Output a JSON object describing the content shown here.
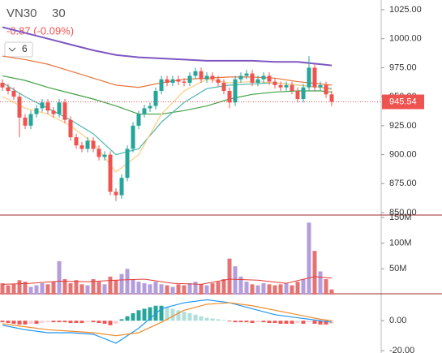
{
  "chart_data": [
    {
      "type": "candlestick",
      "title": "VN30",
      "interval": "30",
      "change": "-0.87 (-0.09%)",
      "indicator_count": 6,
      "up_color": "#26a69a",
      "down_color": "#ef5350",
      "last_price": 945.54,
      "ylim": [
        850,
        1025
      ],
      "yticks": [
        {
          "value": 1025,
          "label": "1025.00"
        },
        {
          "value": 1000,
          "label": "1000.00"
        },
        {
          "value": 975,
          "label": "975.00"
        },
        {
          "value": 950,
          "label": "950.00"
        },
        {
          "value": 925,
          "label": "925.00"
        },
        {
          "value": 900,
          "label": "900.00"
        },
        {
          "value": 875,
          "label": "875.00"
        },
        {
          "value": 850,
          "label": "850.00"
        }
      ],
      "open": [
        962,
        958,
        955,
        950,
        932,
        925,
        935,
        940,
        945,
        938,
        935,
        945,
        930,
        915,
        908,
        905,
        912,
        905,
        898,
        900,
        868,
        865,
        880,
        905,
        925,
        935,
        940,
        942,
        955,
        965,
        962,
        965,
        963,
        962,
        968,
        972,
        965,
        968,
        965,
        962,
        955,
        945,
        965,
        968,
        970,
        962,
        965,
        968,
        963,
        960,
        958,
        960,
        955,
        948,
        958,
        975,
        958,
        960,
        952
      ],
      "high": [
        965,
        961,
        958,
        953,
        935,
        938,
        943,
        948,
        948,
        941,
        948,
        948,
        933,
        918,
        911,
        915,
        915,
        908,
        903,
        903,
        871,
        883,
        908,
        928,
        938,
        943,
        945,
        958,
        968,
        968,
        968,
        968,
        966,
        971,
        975,
        975,
        971,
        971,
        968,
        965,
        958,
        968,
        971,
        973,
        973,
        968,
        971,
        971,
        966,
        963,
        963,
        963,
        958,
        961,
        985,
        978,
        963,
        963,
        955
      ],
      "low": [
        955,
        952,
        947,
        915,
        922,
        922,
        932,
        937,
        935,
        932,
        932,
        927,
        912,
        905,
        902,
        902,
        902,
        895,
        895,
        865,
        860,
        862,
        877,
        902,
        922,
        932,
        937,
        939,
        952,
        959,
        959,
        960,
        959,
        959,
        965,
        962,
        962,
        962,
        959,
        952,
        940,
        942,
        962,
        965,
        959,
        959,
        962,
        960,
        957,
        955,
        955,
        952,
        945,
        945,
        955,
        955,
        955,
        949,
        942
      ],
      "close": [
        958,
        955,
        950,
        932,
        925,
        935,
        940,
        945,
        938,
        935,
        945,
        930,
        915,
        908,
        905,
        912,
        905,
        898,
        900,
        868,
        865,
        880,
        905,
        925,
        935,
        940,
        942,
        955,
        965,
        962,
        965,
        963,
        962,
        968,
        972,
        965,
        968,
        965,
        962,
        955,
        945,
        965,
        968,
        970,
        962,
        965,
        968,
        963,
        960,
        958,
        960,
        955,
        948,
        958,
        975,
        958,
        960,
        952,
        945.54
      ],
      "series": [
        {
          "color": "#7e57c2",
          "x": [
            0,
            4,
            8,
            12,
            16,
            20,
            24,
            28,
            32,
            36,
            40,
            44,
            48,
            52,
            56,
            58
          ],
          "values": [
            1010,
            1005,
            1000,
            995,
            990,
            986,
            984,
            983,
            982,
            981,
            981,
            981,
            980,
            980,
            978,
            977
          ]
        },
        {
          "color": "#e8743b",
          "x": [
            0,
            4,
            8,
            12,
            16,
            20,
            24,
            28,
            32,
            36,
            40,
            44,
            48,
            52,
            56,
            58
          ],
          "values": [
            985,
            982,
            978,
            972,
            966,
            960,
            958,
            962,
            965,
            966,
            967,
            967,
            966,
            963,
            961,
            960
          ]
        },
        {
          "color": "#43a047",
          "x": [
            0,
            4,
            8,
            12,
            16,
            20,
            24,
            28,
            32,
            36,
            40,
            44,
            48,
            52,
            56,
            58
          ],
          "values": [
            968,
            964,
            958,
            953,
            948,
            942,
            935,
            935,
            938,
            942,
            948,
            952,
            954,
            955,
            955,
            954
          ]
        },
        {
          "color": "#4db6ac",
          "x": [
            0,
            4,
            8,
            12,
            16,
            20,
            24,
            28,
            32,
            36,
            40,
            44,
            48,
            52,
            56,
            58
          ],
          "values": [
            962,
            950,
            940,
            930,
            918,
            900,
            905,
            928,
            945,
            957,
            960,
            961,
            962,
            960,
            958,
            957
          ]
        },
        {
          "color": "#ffcc80",
          "x": [
            0,
            4,
            8,
            12,
            16,
            20,
            24,
            28,
            32,
            36,
            40,
            44,
            48,
            52,
            56,
            58
          ],
          "values": [
            950,
            940,
            935,
            925,
            910,
            885,
            900,
            935,
            955,
            965,
            962,
            963,
            962,
            960,
            958,
            956
          ]
        }
      ]
    },
    {
      "type": "volume",
      "up_color": "#b39ddb",
      "down_color": "#e57373",
      "ylim": [
        0,
        150
      ],
      "yticks": [
        {
          "value": 150,
          "label": "150M"
        },
        {
          "value": 100,
          "label": "100M"
        },
        {
          "value": 50,
          "label": "50M"
        }
      ],
      "values": [
        22,
        18,
        20,
        28,
        25,
        15,
        18,
        22,
        20,
        25,
        65,
        30,
        22,
        28,
        20,
        18,
        30,
        25,
        20,
        35,
        28,
        40,
        50,
        30,
        25,
        22,
        20,
        25,
        20,
        18,
        15,
        20,
        18,
        22,
        25,
        20,
        18,
        22,
        25,
        30,
        70,
        55,
        35,
        25,
        20,
        18,
        22,
        20,
        18,
        20,
        22,
        18,
        25,
        30,
        140,
        85,
        45,
        30,
        10
      ],
      "series": [
        {
          "color": "#e53935",
          "x": [
            0,
            5,
            10,
            15,
            20,
            25,
            30,
            35,
            40,
            45,
            50,
            55,
            58
          ],
          "values": [
            20,
            22,
            26,
            25,
            28,
            30,
            22,
            20,
            30,
            28,
            22,
            35,
            32
          ]
        }
      ]
    },
    {
      "type": "macd",
      "colors": [
        "#26a69a",
        "#b2dfdb",
        "#ef5350",
        "#ffcdd2"
      ],
      "ylim": [
        -21,
        18
      ],
      "yticks": [
        {
          "value": 0,
          "label": "0.00"
        },
        {
          "value": -20,
          "label": "-20.00"
        }
      ],
      "values": [
        -1,
        -1.5,
        -2,
        -2.5,
        -2.5,
        -2,
        -2,
        -1.5,
        -1,
        -1,
        -1,
        -1,
        -1.5,
        -1.5,
        -1.5,
        -1,
        -1,
        -1.5,
        -2,
        -3,
        -2,
        1,
        3,
        5,
        7,
        8,
        9,
        10,
        10,
        9,
        8,
        7,
        6,
        5,
        4,
        3,
        2,
        1.5,
        1,
        0.5,
        -0.5,
        -1,
        -1,
        -1,
        -1.5,
        -1,
        -1,
        -1.5,
        -1.5,
        -2,
        -2,
        -2,
        -1.5,
        -2,
        -1,
        -2,
        -2.5,
        -2.5,
        -2
      ],
      "series": [
        {
          "color": "#2196f3",
          "x": [
            0,
            4,
            8,
            12,
            16,
            20,
            24,
            28,
            32,
            36,
            40,
            44,
            48,
            52,
            56,
            58
          ],
          "values": [
            -3,
            -6,
            -8,
            -8,
            -9,
            -15,
            -5,
            8,
            12,
            14,
            12,
            8,
            4,
            2,
            0,
            -1
          ]
        },
        {
          "color": "#ef8a2c",
          "x": [
            0,
            4,
            8,
            12,
            16,
            20,
            24,
            28,
            32,
            36,
            40,
            44,
            48,
            52,
            56,
            58
          ],
          "values": [
            -2,
            -4,
            -6,
            -7,
            -8,
            -10,
            -8,
            -1,
            7,
            11,
            12,
            10,
            7,
            4,
            1,
            0
          ]
        }
      ]
    }
  ]
}
